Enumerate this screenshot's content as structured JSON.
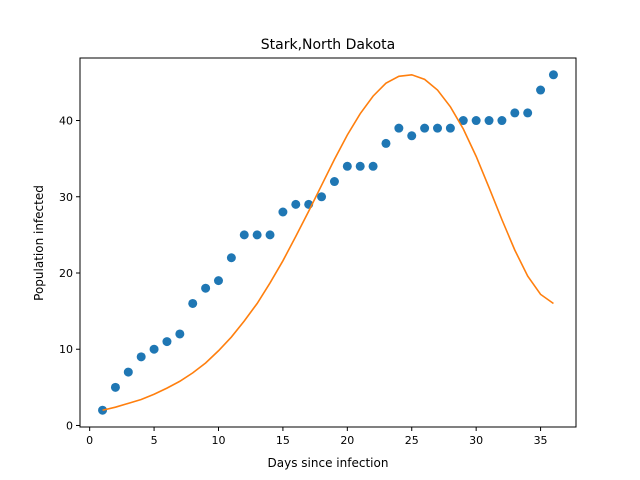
{
  "chart_data": {
    "type": "scatter",
    "title": "Stark,North Dakota",
    "xlabel": "Days since infection",
    "ylabel": "Population infected",
    "xlim": [
      -0.75,
      37.75
    ],
    "ylim": [
      -0.2,
      48.2
    ],
    "xticks": [
      0,
      5,
      10,
      15,
      20,
      25,
      30,
      35
    ],
    "yticks": [
      0,
      10,
      20,
      30,
      40
    ],
    "grid": false,
    "series": [
      {
        "kind": "scatter",
        "color": "#1f77b4",
        "x": [
          1,
          2,
          3,
          4,
          5,
          6,
          7,
          8,
          9,
          10,
          11,
          12,
          13,
          14,
          15,
          16,
          17,
          18,
          19,
          20,
          21,
          22,
          23,
          24,
          25,
          26,
          27,
          28,
          29,
          30,
          31,
          32,
          33,
          34,
          35,
          36
        ],
        "values": [
          2,
          5,
          7,
          9,
          10,
          11,
          12,
          16,
          18,
          19,
          22,
          25,
          25,
          25,
          28,
          29,
          29,
          30,
          32,
          34,
          34,
          34,
          37,
          39,
          38,
          39,
          39,
          39,
          40,
          40,
          40,
          40,
          41,
          41,
          44,
          46
        ]
      },
      {
        "kind": "line",
        "color": "#ff7f0e",
        "x": [
          1,
          2,
          3,
          4,
          5,
          6,
          7,
          8,
          9,
          10,
          11,
          12,
          13,
          14,
          15,
          16,
          17,
          18,
          19,
          20,
          21,
          22,
          23,
          24,
          25,
          26,
          27,
          28,
          29,
          30,
          31,
          32,
          33,
          34,
          35,
          36
        ],
        "values": [
          2.0,
          2.4,
          2.9,
          3.4,
          4.1,
          4.9,
          5.8,
          6.9,
          8.2,
          9.8,
          11.6,
          13.7,
          16.0,
          18.7,
          21.6,
          24.8,
          28.1,
          31.5,
          34.9,
          38.1,
          40.9,
          43.2,
          44.9,
          45.8,
          46.0,
          45.4,
          44.0,
          41.8,
          38.9,
          35.3,
          31.2,
          27.0,
          23.0,
          19.6,
          17.2,
          16.0
        ]
      }
    ]
  }
}
